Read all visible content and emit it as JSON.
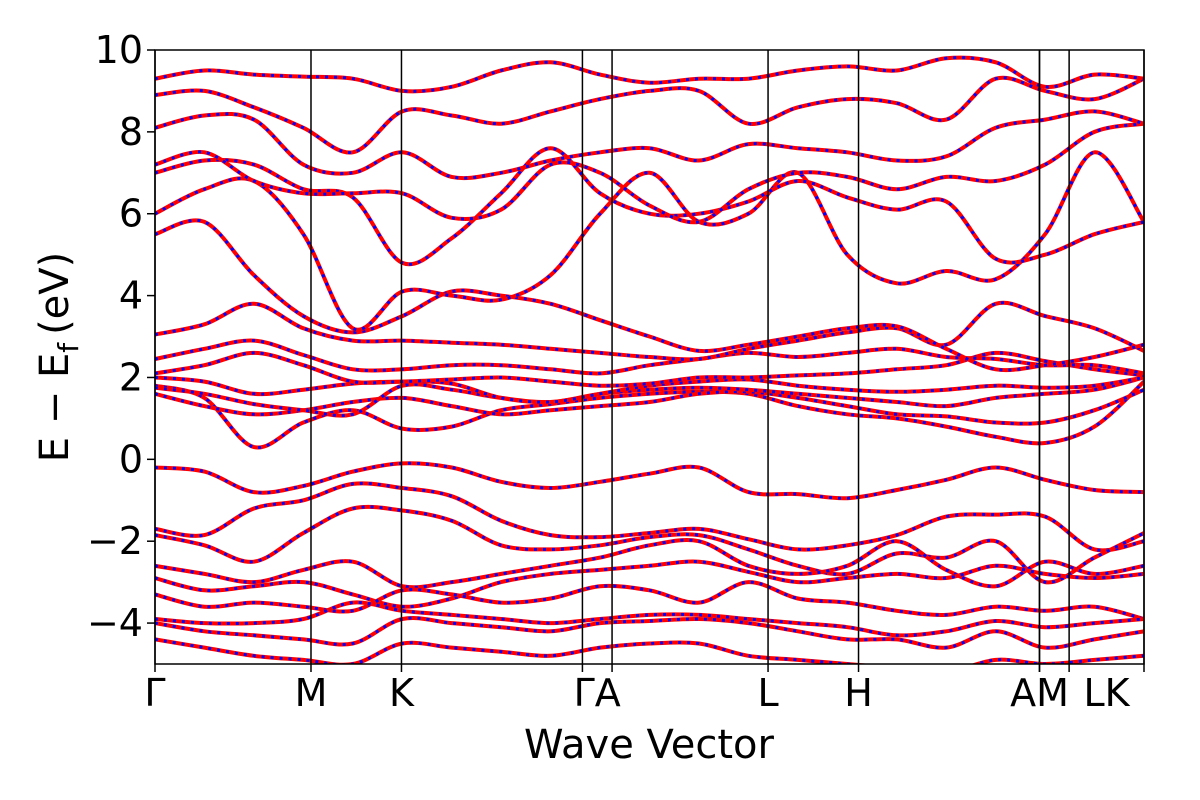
{
  "chart_data": {
    "type": "line",
    "title": "",
    "xlabel": "Wave Vector",
    "ylabel": "E − E",
    "ylabel_sub": "f",
    "ylabel_unit": "(eV)",
    "ylim": [
      -5,
      10
    ],
    "yticks": [
      -4,
      -2,
      0,
      2,
      4,
      6,
      8,
      10
    ],
    "ytick_labels": [
      "−4",
      "−2",
      "0",
      "2",
      "4",
      "6",
      "8",
      "10"
    ],
    "xlim": [
      0,
      6.34
    ],
    "kpoints": [
      {
        "label": "Γ",
        "x": 0.0
      },
      {
        "label": "M",
        "x": 1.0
      },
      {
        "label": "K",
        "x": 1.58
      },
      {
        "label": "Γ",
        "x": 2.74
      },
      {
        "label": "A",
        "x": 2.93
      },
      {
        "label": "L",
        "x": 3.93
      },
      {
        "label": "H",
        "x": 4.51
      },
      {
        "label": "A",
        "x": 5.67
      },
      {
        "label": "M",
        "x": 5.67
      },
      {
        "label": "L",
        "x": 5.86
      },
      {
        "label": "K",
        "x": 6.34
      }
    ],
    "kpoint_label_text": [
      "Γ",
      "M",
      "K",
      "ΓA",
      "L",
      "H",
      "AM",
      "LK"
    ],
    "grid": false,
    "series_colors": {
      "dft": "#ff0000",
      "model": "#0000ff"
    },
    "bands": [
      {
        "y": [
          -0.2,
          -0.3,
          -0.8,
          -0.65,
          -0.3,
          -0.1,
          -0.2,
          -0.55,
          -0.7,
          -0.55,
          -0.35,
          -0.2,
          -0.8,
          -0.85,
          -0.95,
          -0.75,
          -0.5,
          -0.2,
          -0.5,
          -0.75,
          -0.8
        ]
      },
      {
        "y": [
          -1.7,
          -1.85,
          -1.2,
          -1.0,
          -0.6,
          -0.7,
          -0.9,
          -1.5,
          -1.85,
          -1.9,
          -1.8,
          -1.7,
          -1.95,
          -2.2,
          -2.1,
          -1.85,
          -1.4,
          -1.35,
          -1.4,
          -2.2,
          -2.0
        ]
      },
      {
        "y": [
          -1.85,
          -2.1,
          -2.5,
          -1.8,
          -1.2,
          -1.25,
          -1.5,
          -2.1,
          -2.2,
          -2.1,
          -1.9,
          -1.85,
          -2.2,
          -2.6,
          -2.8,
          -2.3,
          -2.4,
          -2.0,
          -3.0,
          -2.4,
          -1.8
        ]
      },
      {
        "y": [
          -2.6,
          -2.8,
          -3.0,
          -2.7,
          -2.5,
          -3.1,
          -3.0,
          -2.8,
          -2.6,
          -2.4,
          -2.1,
          -2.0,
          -2.6,
          -2.8,
          -2.6,
          -2.0,
          -2.7,
          -3.1,
          -2.5,
          -2.8,
          -2.6
        ]
      },
      {
        "y": [
          -2.9,
          -3.2,
          -3.1,
          -3.0,
          -3.3,
          -3.6,
          -3.4,
          -3.0,
          -2.8,
          -2.7,
          -2.6,
          -2.5,
          -2.75,
          -3.0,
          -2.9,
          -2.8,
          -2.9,
          -2.6,
          -2.8,
          -2.9,
          -2.8
        ]
      },
      {
        "y": [
          -3.3,
          -3.6,
          -3.5,
          -3.6,
          -3.7,
          -3.2,
          -3.3,
          -3.5,
          -3.4,
          -3.1,
          -3.2,
          -3.5,
          -3.0,
          -3.4,
          -3.5,
          -3.7,
          -3.8,
          -3.6,
          -3.7,
          -3.6,
          -3.9
        ]
      },
      {
        "y": [
          -3.9,
          -4.0,
          -4.0,
          -3.9,
          -3.5,
          -3.7,
          -3.8,
          -3.9,
          -4.0,
          -3.9,
          -3.8,
          -3.8,
          -3.9,
          -4.0,
          -4.1,
          -4.3,
          -4.2,
          -3.95,
          -4.1,
          -4.0,
          -3.9
        ]
      },
      {
        "y": [
          -4.0,
          -4.2,
          -4.3,
          -4.4,
          -4.5,
          -3.9,
          -4.0,
          -4.1,
          -4.2,
          -4.0,
          -3.95,
          -3.9,
          -4.0,
          -4.2,
          -4.4,
          -4.4,
          -4.6,
          -4.2,
          -4.6,
          -4.4,
          -4.2
        ]
      },
      {
        "y": [
          -4.4,
          -4.6,
          -4.8,
          -4.9,
          -5.0,
          -4.5,
          -4.6,
          -4.7,
          -4.8,
          -4.6,
          -4.5,
          -4.5,
          -4.8,
          -4.9,
          -5.0,
          -5.1,
          -5.2,
          -4.9,
          -5.0,
          -4.9,
          -4.8
        ]
      },
      {
        "y": [
          1.8,
          1.5,
          0.3,
          0.9,
          1.2,
          0.75,
          0.8,
          1.2,
          1.35,
          1.5,
          1.6,
          1.65,
          1.6,
          1.3,
          1.1,
          1.0,
          0.8,
          0.55,
          0.4,
          0.8,
          1.9
        ]
      },
      {
        "y": [
          1.6,
          1.3,
          1.1,
          1.2,
          1.4,
          1.5,
          1.3,
          1.1,
          1.2,
          1.3,
          1.4,
          1.6,
          1.65,
          1.5,
          1.3,
          1.1,
          1.05,
          0.9,
          0.9,
          1.2,
          1.7
        ]
      },
      {
        "y": [
          1.75,
          1.6,
          1.35,
          1.2,
          1.1,
          1.8,
          1.7,
          1.5,
          1.4,
          1.6,
          1.7,
          1.75,
          1.7,
          1.6,
          1.5,
          1.4,
          1.3,
          1.5,
          1.6,
          1.7,
          2.0
        ]
      },
      {
        "y": [
          2.0,
          1.9,
          1.6,
          1.7,
          1.85,
          1.9,
          1.85,
          1.5,
          1.4,
          1.6,
          1.8,
          1.9,
          1.95,
          1.8,
          1.7,
          1.65,
          1.7,
          1.8,
          1.75,
          1.8,
          2.0
        ]
      },
      {
        "y": [
          2.1,
          2.3,
          2.6,
          2.3,
          1.9,
          1.9,
          1.95,
          2.0,
          1.9,
          1.8,
          1.85,
          2.0,
          2.0,
          2.05,
          2.1,
          2.2,
          2.3,
          2.6,
          2.4,
          2.2,
          2.05
        ]
      },
      {
        "y": [
          2.45,
          2.7,
          2.9,
          2.55,
          2.2,
          2.2,
          2.3,
          2.3,
          2.2,
          2.1,
          2.3,
          2.45,
          2.6,
          2.5,
          2.6,
          2.7,
          2.5,
          2.45,
          2.3,
          2.3,
          2.1
        ]
      },
      {
        "y": [
          3.05,
          3.3,
          3.8,
          3.2,
          2.9,
          2.9,
          2.85,
          2.8,
          2.7,
          2.6,
          2.5,
          2.45,
          2.7,
          2.9,
          3.1,
          3.2,
          2.8,
          3.8,
          3.5,
          3.2,
          2.65
        ]
      },
      {
        "y": [
          5.5,
          5.8,
          4.5,
          3.5,
          3.1,
          3.5,
          4.1,
          4.0,
          3.8,
          3.4,
          3.0,
          2.65,
          2.8,
          3.0,
          3.2,
          3.25,
          2.7,
          2.2,
          2.3,
          2.5,
          2.8
        ]
      },
      {
        "y": [
          6.0,
          6.6,
          6.8,
          5.5,
          3.2,
          4.1,
          4.0,
          3.9,
          4.5,
          6.0,
          7.0,
          5.8,
          6.0,
          7.0,
          5.0,
          4.3,
          4.6,
          4.4,
          5.5,
          7.5,
          5.8
        ]
      },
      {
        "y": [
          7.0,
          7.3,
          7.2,
          6.6,
          6.4,
          4.8,
          5.4,
          6.5,
          7.6,
          6.5,
          6.0,
          6.0,
          6.3,
          6.8,
          6.4,
          6.1,
          6.3,
          4.9,
          5.0,
          5.5,
          5.8
        ]
      },
      {
        "y": [
          7.2,
          7.5,
          6.8,
          6.5,
          6.5,
          6.5,
          5.9,
          6.1,
          7.2,
          7.0,
          6.2,
          5.8,
          6.6,
          7.0,
          6.9,
          6.6,
          6.9,
          6.8,
          7.2,
          8.0,
          8.2
        ]
      },
      {
        "y": [
          8.1,
          8.4,
          8.3,
          7.2,
          7.0,
          7.5,
          6.9,
          7.0,
          7.3,
          7.5,
          7.6,
          7.3,
          7.7,
          7.6,
          7.5,
          7.3,
          7.4,
          8.1,
          8.3,
          8.5,
          8.2
        ]
      },
      {
        "y": [
          8.9,
          9.0,
          8.6,
          8.1,
          7.5,
          8.5,
          8.4,
          8.2,
          8.5,
          8.8,
          9.0,
          9.0,
          8.2,
          8.6,
          8.8,
          8.7,
          8.3,
          9.3,
          9.0,
          8.8,
          9.3
        ]
      },
      {
        "y": [
          9.3,
          9.5,
          9.4,
          9.35,
          9.3,
          9.0,
          9.1,
          9.5,
          9.7,
          9.4,
          9.2,
          9.3,
          9.3,
          9.5,
          9.6,
          9.5,
          9.8,
          9.7,
          9.1,
          9.4,
          9.3
        ]
      }
    ]
  }
}
